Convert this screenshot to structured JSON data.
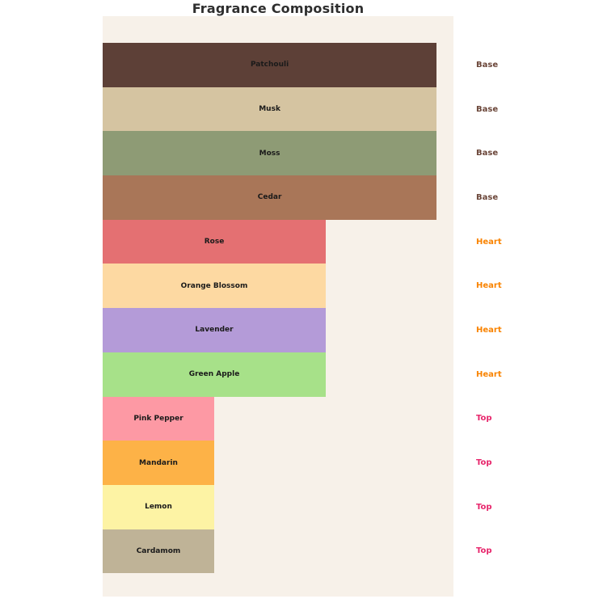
{
  "title": "Fragrance Composition",
  "chart_data": {
    "type": "bar",
    "orientation": "horizontal",
    "title": "Fragrance Composition",
    "xlabel": "",
    "ylabel": "",
    "xlim": [
      0,
      3.15
    ],
    "grid": false,
    "legend": false,
    "plot_background": "#f7f1e9",
    "categories": [
      "Patchouli",
      "Musk",
      "Moss",
      "Cedar",
      "Rose",
      "Orange Blossom",
      "Lavender",
      "Green Apple",
      "Pink Pepper",
      "Mandarin",
      "Lemon",
      "Cardamom"
    ],
    "bars": [
      {
        "label": "Patchouli",
        "category": "Base",
        "value": 3,
        "width_pct": 95.2,
        "color": "#5d4037"
      },
      {
        "label": "Musk",
        "category": "Base",
        "value": 3,
        "width_pct": 95.2,
        "color": "#d5c4a1"
      },
      {
        "label": "Moss",
        "category": "Base",
        "value": 3,
        "width_pct": 95.2,
        "color": "#8e9b75"
      },
      {
        "label": "Cedar",
        "category": "Base",
        "value": 3,
        "width_pct": 95.2,
        "color": "#a97658"
      },
      {
        "label": "Rose",
        "category": "Heart",
        "value": 2,
        "width_pct": 63.6,
        "color": "#e47072"
      },
      {
        "label": "Orange Blossom",
        "category": "Heart",
        "value": 2,
        "width_pct": 63.6,
        "color": "#fdd9a2"
      },
      {
        "label": "Lavender",
        "category": "Heart",
        "value": 2,
        "width_pct": 63.6,
        "color": "#b49bd8"
      },
      {
        "label": "Green Apple",
        "category": "Heart",
        "value": 2,
        "width_pct": 63.6,
        "color": "#a7e189"
      },
      {
        "label": "Pink Pepper",
        "category": "Top",
        "value": 1,
        "width_pct": 31.8,
        "color": "#fd99a4"
      },
      {
        "label": "Mandarin",
        "category": "Top",
        "value": 1,
        "width_pct": 31.8,
        "color": "#fdb247"
      },
      {
        "label": "Lemon",
        "category": "Top",
        "value": 1,
        "width_pct": 31.8,
        "color": "#fdf3a4"
      },
      {
        "label": "Cardamom",
        "category": "Top",
        "value": 1,
        "width_pct": 31.8,
        "color": "#bfb397"
      }
    ],
    "category_colors": {
      "Base": "#6b4639",
      "Heart": "#f98300",
      "Top": "#e7256b"
    }
  }
}
